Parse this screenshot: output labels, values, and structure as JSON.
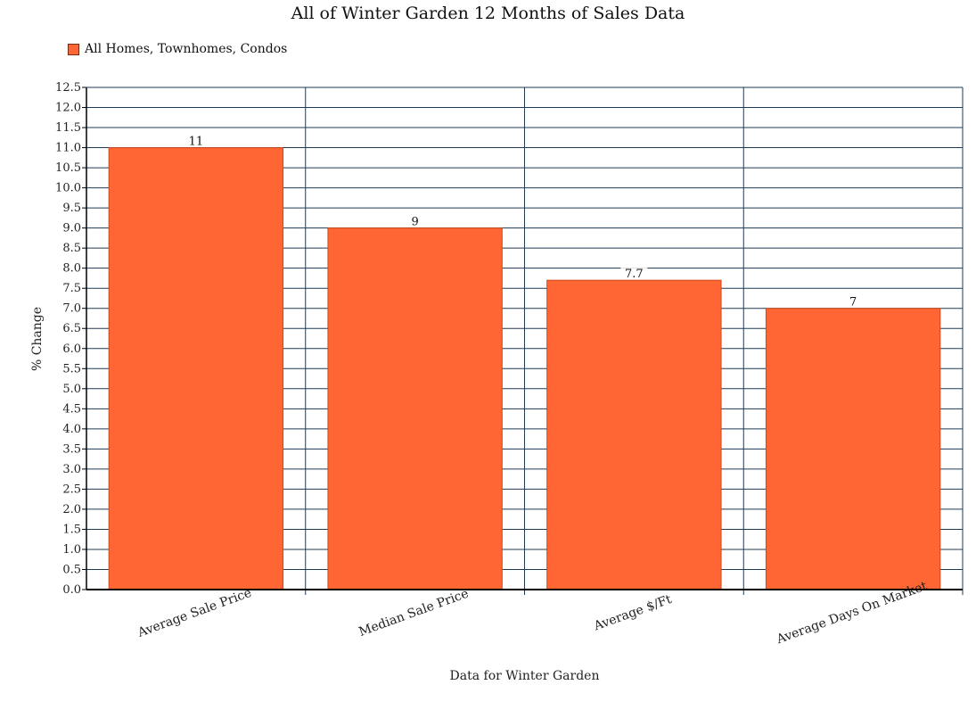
{
  "chart_data": {
    "type": "bar",
    "title": "All of Winter Garden 12 Months of Sales Data",
    "xlabel": "Data for Winter Garden",
    "ylabel": "% Change",
    "categories": [
      "Average Sale Price",
      "Median Sale Price",
      "Average $/Ft",
      "Average Days On Market"
    ],
    "series": [
      {
        "name": "All Homes, Townhomes, Condos",
        "values": [
          11,
          9,
          7.7,
          7
        ],
        "labels": [
          "11",
          "9",
          "7.7",
          "7"
        ]
      }
    ],
    "ylim": [
      0,
      12.5
    ],
    "ytick_step": 0.5,
    "grid": true,
    "legend_position": "top-left",
    "colors": {
      "bar": "#ff6633",
      "bar_edge": "#c94a1f",
      "grid": "#1f3a56",
      "axis": "#000000"
    }
  }
}
